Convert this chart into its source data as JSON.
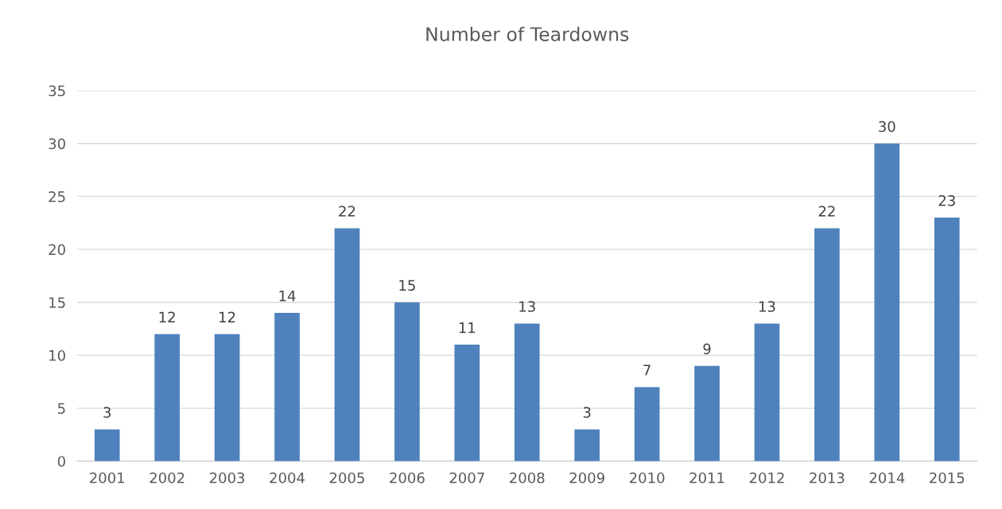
{
  "chart_data": {
    "type": "bar",
    "title": "Number of Teardowns",
    "categories": [
      "2001",
      "2002",
      "2003",
      "2004",
      "2005",
      "2006",
      "2007",
      "2008",
      "2009",
      "2010",
      "2011",
      "2012",
      "2013",
      "2014",
      "2015"
    ],
    "values": [
      3,
      12,
      12,
      14,
      22,
      15,
      11,
      13,
      3,
      7,
      9,
      13,
      22,
      30,
      23
    ],
    "color": "#4f81bd",
    "ylim": [
      0,
      35
    ],
    "yticks": [
      0,
      5,
      10,
      15,
      20,
      25,
      30,
      35
    ],
    "grid": "y",
    "data_labels": true,
    "legend": false
  }
}
